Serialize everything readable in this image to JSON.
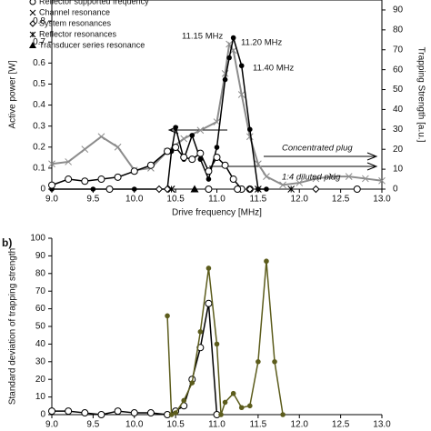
{
  "chart_data": [
    {
      "type": "line",
      "xlabel": "Drive frequency [MHz]",
      "ylabel": "Active power [W]",
      "y2label": "Trapping Strength [a.u.]",
      "xlim": [
        9,
        13
      ],
      "xticks": [
        {
          "value": 9,
          "label": "9.0"
        },
        9.5,
        {
          "value": 10,
          "label": "10.0"
        },
        10.5,
        {
          "value": 11,
          "label": "11.0"
        },
        11.5,
        {
          "value": 12,
          "label": "12.0"
        },
        12.5,
        {
          "value": 13,
          "label": "13.0"
        }
      ],
      "ylim": [
        0,
        0.9
      ],
      "yticks": [
        0,
        0.1,
        0.2,
        0.3,
        0.4,
        0.5,
        0.6,
        0.7,
        0.8
      ],
      "y2lim": [
        0,
        95
      ],
      "y2ticks": [
        0,
        10,
        20,
        30,
        40,
        50,
        60,
        70,
        80,
        90
      ],
      "series": [
        {
          "color": "#8c8c8c",
          "marker": "x",
          "line": true,
          "x": [
            9.0,
            9.2,
            9.4,
            9.6,
            9.8,
            10.0,
            10.2,
            10.4,
            10.6,
            10.8,
            11.0,
            11.1,
            11.15,
            11.2,
            11.3,
            11.4,
            11.5,
            11.6,
            11.8,
            12.0,
            12.2,
            12.4,
            12.6,
            12.8,
            13.0
          ],
          "values": [
            0.12,
            0.13,
            0.19,
            0.25,
            0.2,
            0.09,
            0.1,
            0.18,
            0.24,
            0.28,
            0.32,
            0.55,
            0.69,
            0.66,
            0.45,
            0.25,
            0.12,
            0.06,
            0.02,
            0.03,
            0.05,
            0.06,
            0.06,
            0.05,
            0.04
          ]
        },
        {
          "color": "#000000",
          "marker": "dot",
          "line": true,
          "axis": "y2",
          "x": [
            9.0,
            9.5,
            10.0,
            10.4,
            10.45,
            10.5,
            10.6,
            10.7,
            10.8,
            10.9,
            11.0,
            11.1,
            11.15,
            11.2,
            11.3,
            11.4,
            11.5,
            11.6
          ],
          "values": [
            0,
            0,
            0,
            0,
            19,
            31,
            15,
            27,
            15,
            5,
            21,
            55,
            66,
            76,
            62,
            30,
            0,
            0
          ]
        },
        {
          "color": "#000000",
          "marker": "open",
          "line": true,
          "axis": "y2",
          "x": [
            9.0,
            9.2,
            9.4,
            9.6,
            9.8,
            10.0,
            10.2,
            10.4,
            10.5,
            10.6,
            10.7,
            10.8,
            10.9,
            11.0,
            11.1,
            11.2,
            11.3
          ],
          "values": [
            2,
            5,
            4,
            5,
            6,
            9,
            12,
            19,
            21,
            16,
            15,
            18,
            9,
            16,
            12,
            5,
            0
          ]
        },
        {
          "name": "Reflector supported frequency",
          "color": "#000000",
          "marker": "open",
          "x": [
            9.7,
            10.9,
            11.25,
            11.4,
            12.7
          ],
          "values": [
            0,
            0,
            0,
            0,
            0
          ]
        },
        {
          "name": "Channel resonance",
          "color": "#000000",
          "marker": "x",
          "x": [
            10.45,
            11.5
          ],
          "values": [
            0,
            0
          ]
        },
        {
          "name": "System resonances",
          "color": "#000000",
          "marker": "diamond",
          "x": [
            10.3,
            10.4,
            11.4,
            12.2
          ],
          "values": [
            0,
            0,
            0,
            0
          ]
        },
        {
          "name": "Reflector resonances",
          "color": "#000000",
          "marker": "asterisk",
          "x": [
            10.45,
            11.9
          ],
          "values": [
            0,
            0
          ]
        },
        {
          "name": "Transducer series resonance",
          "color": "#000000",
          "marker": "triangle",
          "x": [
            10.73
          ],
          "values": [
            0
          ]
        }
      ],
      "annotations": [
        "11.15 MHz",
        "11.20 MHz",
        "11.40 MHz",
        "Concentrated plug",
        "1:4 diluted plug"
      ]
    },
    {
      "type": "line",
      "panel": "b)",
      "ylabel": "Standard deviation of trapping strength",
      "xlim": [
        9,
        13
      ],
      "xticks": [
        {
          "value": 9,
          "label": "9.0"
        },
        9.5,
        {
          "value": 10,
          "label": "10.0"
        },
        10.5,
        {
          "value": 11,
          "label": "11.0"
        },
        11.5,
        {
          "value": 12,
          "label": "12.0"
        },
        12.5,
        {
          "value": 13,
          "label": "13.0"
        }
      ],
      "ylim": [
        0,
        100
      ],
      "yticks": [
        0,
        10,
        20,
        30,
        40,
        50,
        60,
        70,
        80,
        90,
        100
      ],
      "series": [
        {
          "color": "#000000",
          "marker": "open",
          "line": true,
          "x": [
            9.0,
            9.2,
            9.4,
            9.6,
            9.8,
            10.0,
            10.2,
            10.4,
            10.5,
            10.6,
            10.7,
            10.8,
            10.9,
            11.0
          ],
          "values": [
            2,
            2,
            1,
            0,
            2,
            1,
            1,
            0,
            2,
            5,
            20,
            38,
            63,
            0
          ]
        },
        {
          "color": "#5c5c1c",
          "marker": "dot",
          "line": true,
          "x": [
            10.4,
            10.45,
            10.5,
            10.6,
            10.7,
            10.8,
            10.9,
            11.0,
            11.05,
            11.1,
            11.2,
            11.3,
            11.4,
            11.5,
            11.6,
            11.7,
            11.8
          ],
          "values": [
            56,
            0,
            1,
            8,
            18,
            47,
            83,
            40,
            0,
            7,
            12,
            4,
            5,
            30,
            87,
            30,
            0
          ]
        }
      ]
    }
  ]
}
